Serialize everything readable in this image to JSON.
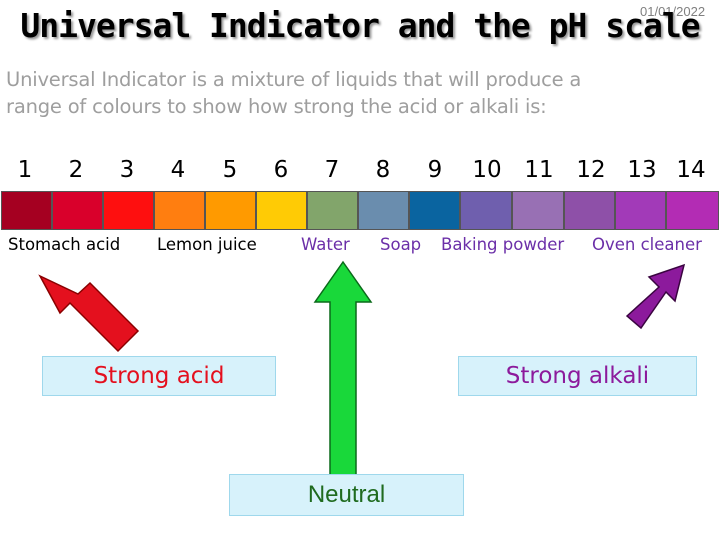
{
  "slide": {
    "date": "01/01/2022",
    "title": "Universal Indicator and the pH scale",
    "intro_line1": "Universal Indicator is a mixture of liquids that will produce a",
    "intro_line2": "range of colours to show how strong the acid or alkali is:"
  },
  "ph_scale": {
    "numbers": [
      "1",
      "2",
      "3",
      "4",
      "5",
      "6",
      "7",
      "8",
      "9",
      "10",
      "11",
      "12",
      "13",
      "14"
    ],
    "colors": [
      "#a50021",
      "#d9002b",
      "#fe0f0f",
      "#ff7e10",
      "#ff9a00",
      "#ffcb05",
      "#82a56b",
      "#6a8dae",
      "#0a64a0",
      "#6f5fae",
      "#9870b4",
      "#8e50a8",
      "#a23ab8",
      "#b32cb4"
    ]
  },
  "labels": {
    "stomach_acid": "Stomach acid",
    "lemon_juice": "Lemon juice",
    "water": "Water",
    "soap": "Soap",
    "baking_powder": "Baking powder",
    "oven_cleaner": "Oven cleaner"
  },
  "boxes": {
    "strong_acid": "Strong acid",
    "strong_alkali": "Strong alkali",
    "neutral": "Neutral"
  },
  "colors": {
    "acid_arrow": "#e4101e",
    "neutral_arrow": "#19d83a",
    "alkali_arrow": "#8c1a9c",
    "box_bg": "#d7f2fb",
    "alkali_label": "#6b2fa8"
  }
}
